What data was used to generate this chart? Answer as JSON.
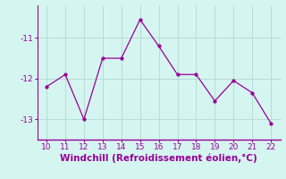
{
  "x": [
    10,
    11,
    12,
    13,
    14,
    15,
    16,
    17,
    18,
    19,
    20,
    21,
    22
  ],
  "y": [
    -12.2,
    -11.9,
    -13.0,
    -11.5,
    -11.5,
    -10.55,
    -11.2,
    -11.9,
    -11.9,
    -12.55,
    -12.05,
    -12.35,
    -13.1
  ],
  "line_color": "#990099",
  "marker_color": "#990099",
  "background_color": "#d5f5f0",
  "grid_color": "#b8ddd6",
  "xlabel": "Windchill (Refroidissement éolien,°C)",
  "xlabel_color": "#990099",
  "xlabel_fontsize": 7.5,
  "tick_color": "#990099",
  "tick_fontsize": 6.5,
  "ylim": [
    -13.5,
    -10.2
  ],
  "xlim": [
    9.5,
    22.5
  ],
  "yticks": [
    -13,
    -12,
    -11
  ],
  "xticks": [
    10,
    11,
    12,
    13,
    14,
    15,
    16,
    17,
    18,
    19,
    20,
    21,
    22
  ],
  "marker_size": 2.5,
  "line_width": 0.9,
  "spine_color": "#990099"
}
